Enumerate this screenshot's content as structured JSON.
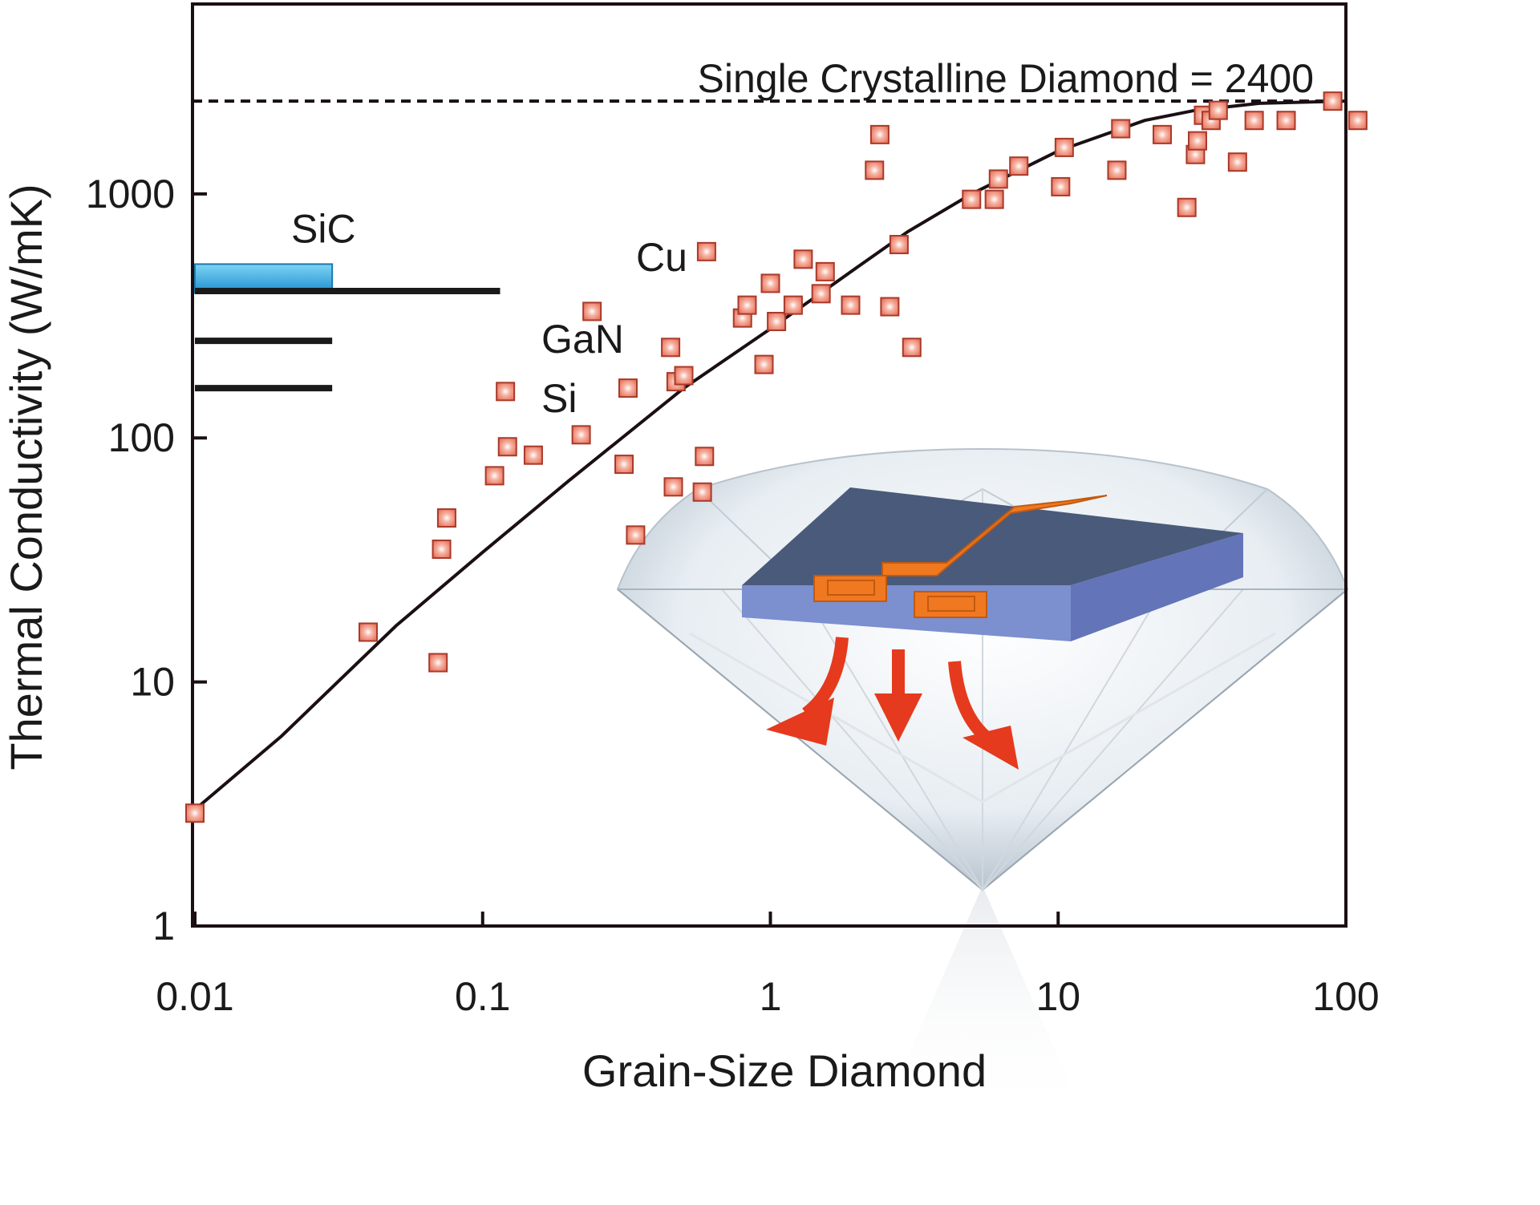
{
  "chart_data": {
    "type": "scatter",
    "xlabel": "Grain-Size Diamond",
    "ylabel": "Thermal Conductivity (W/mK)",
    "xscale": "log",
    "yscale": "log",
    "xlim": [
      0.01,
      100
    ],
    "ylim": [
      1,
      6000
    ],
    "x_ticks": [
      0.01,
      0.1,
      1,
      10,
      100
    ],
    "x_tick_labels": [
      "0.01",
      "0.1",
      "1",
      "10",
      "100"
    ],
    "y_ticks": [
      1,
      10,
      100,
      1000
    ],
    "y_tick_labels": [
      "1",
      "10",
      "100",
      "1000"
    ],
    "grid": false,
    "reference_line": {
      "label": "Single Crystalline Diamond = 2400",
      "y": 2400,
      "style": "dashed"
    },
    "material_markers": [
      {
        "label": "SiC",
        "y": 450,
        "x_end": 0.03,
        "color": "#3aaee6"
      },
      {
        "label": "Cu",
        "y": 400,
        "x_end": 0.115,
        "color": "#1a1a1a"
      },
      {
        "label": "GaN",
        "y": 250,
        "x_end": 0.03,
        "color": "#1a1a1a"
      },
      {
        "label": "Si",
        "y": 160,
        "x_end": 0.03,
        "color": "#1a1a1a"
      }
    ],
    "fit_curve": {
      "x": [
        0.01,
        0.02,
        0.05,
        0.1,
        0.2,
        0.5,
        1,
        2,
        3,
        5,
        10,
        20,
        30,
        50,
        100
      ],
      "y": [
        3,
        6,
        17,
        34,
        67,
        160,
        280,
        500,
        700,
        1000,
        1500,
        2000,
        2200,
        2350,
        2400
      ]
    },
    "points": {
      "x": [
        0.01,
        0.04,
        0.07,
        0.072,
        0.075,
        0.11,
        0.12,
        0.122,
        0.15,
        0.22,
        0.24,
        0.31,
        0.32,
        0.34,
        0.45,
        0.46,
        0.47,
        0.5,
        0.58,
        0.59,
        0.6,
        0.8,
        0.83,
        0.95,
        1.0,
        1.05,
        1.2,
        1.3,
        1.5,
        1.55,
        1.9,
        2.3,
        2.4,
        2.6,
        2.8,
        3.1,
        5.0,
        6.0,
        6.2,
        7.3,
        10.2,
        10.5,
        16.0,
        16.5,
        23.0,
        28.0,
        30.0,
        30.5,
        32.0,
        34.0,
        36.0,
        42.0,
        48.0,
        62.0,
        90.0,
        110.0
      ],
      "y": [
        2.9,
        16,
        12,
        35,
        47,
        70,
        155,
        92,
        85,
        103,
        330,
        78,
        160,
        40,
        235,
        63,
        170,
        180,
        60,
        84,
        580,
        310,
        350,
        200,
        430,
        300,
        350,
        540,
        390,
        480,
        350,
        1250,
        1750,
        345,
        620,
        235,
        950,
        950,
        1150,
        1300,
        1070,
        1550,
        1250,
        1850,
        1750,
        880,
        1450,
        1650,
        2100,
        2000,
        2200,
        1350,
        2000,
        2000,
        2400,
        2000
      ]
    },
    "colors": {
      "marker_fill": "#e8725c",
      "marker_edge": "#a83a2a",
      "marker_center": "#ffffff",
      "curve": "#1a0f14",
      "sic_bar": "#3aaee6",
      "chip": "#4a5a7a",
      "chip_edge": "#7c8fcf",
      "electrode": "#f07820",
      "arrow": "#e53a1e"
    }
  }
}
